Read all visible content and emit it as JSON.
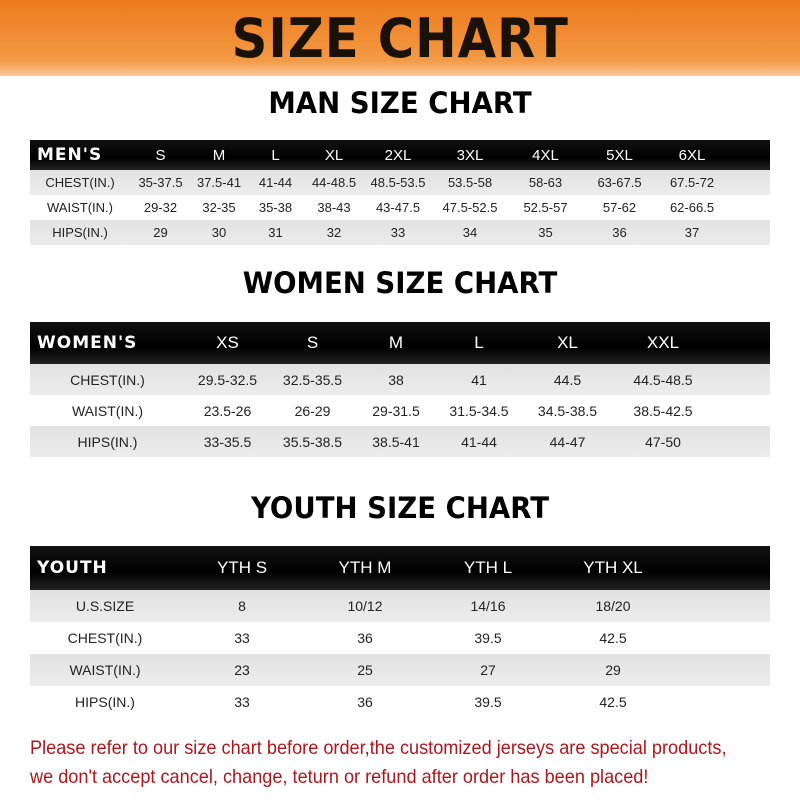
{
  "banner_title": "SIZE CHART",
  "men": {
    "title": "MAN SIZE CHART",
    "header": [
      "MEN'S",
      "S",
      "M",
      "L",
      "XL",
      "2XL",
      "3XL",
      "4XL",
      "5XL",
      "6XL"
    ],
    "rows": [
      [
        "CHEST(IN.)",
        "35-37.5",
        "37.5-41",
        "41-44",
        "44-48.5",
        "48.5-53.5",
        "53.5-58",
        "58-63",
        "63-67.5",
        "67.5-72"
      ],
      [
        "WAIST(IN.)",
        "29-32",
        "32-35",
        "35-38",
        "38-43",
        "43-47.5",
        "47.5-52.5",
        "52.5-57",
        "57-62",
        "62-66.5"
      ],
      [
        "HIPS(IN.)",
        "29",
        "30",
        "31",
        "32",
        "33",
        "34",
        "35",
        "36",
        "37"
      ]
    ]
  },
  "women": {
    "title": "WOMEN SIZE CHART",
    "header": [
      "WOMEN'S",
      "XS",
      "S",
      "M",
      "L",
      "XL",
      "XXL"
    ],
    "rows": [
      [
        "CHEST(IN.)",
        "29.5-32.5",
        "32.5-35.5",
        "38",
        "41",
        "44.5",
        "44.5-48.5"
      ],
      [
        "WAIST(IN.)",
        "23.5-26",
        "26-29",
        "29-31.5",
        "31.5-34.5",
        "34.5-38.5",
        "38.5-42.5"
      ],
      [
        "HIPS(IN.)",
        "33-35.5",
        "35.5-38.5",
        "38.5-41",
        "41-44",
        "44-47",
        "47-50"
      ]
    ]
  },
  "youth": {
    "title": "YOUTH SIZE CHART",
    "header": [
      "YOUTH",
      "YTH S",
      "YTH M",
      "YTH L",
      "YTH XL"
    ],
    "rows": [
      [
        "U.S.SIZE",
        "8",
        "10/12",
        "14/16",
        "18/20"
      ],
      [
        "CHEST(IN.)",
        "33",
        "36",
        "39.5",
        "42.5"
      ],
      [
        "WAIST(IN.)",
        "23",
        "25",
        "27",
        "29"
      ],
      [
        "HIPS(IN.)",
        "33",
        "36",
        "39.5",
        "42.5"
      ]
    ]
  },
  "notice": [
    "Please refer to our size chart before order,the customized jerseys are special products,",
    "we don't accept cancel, change, teturn or refund after order has been placed!"
  ],
  "colors": {
    "banner": "#ee7a1c",
    "header": "#000000",
    "stripe": "#e6e6e6",
    "notice": "#b0161c"
  }
}
